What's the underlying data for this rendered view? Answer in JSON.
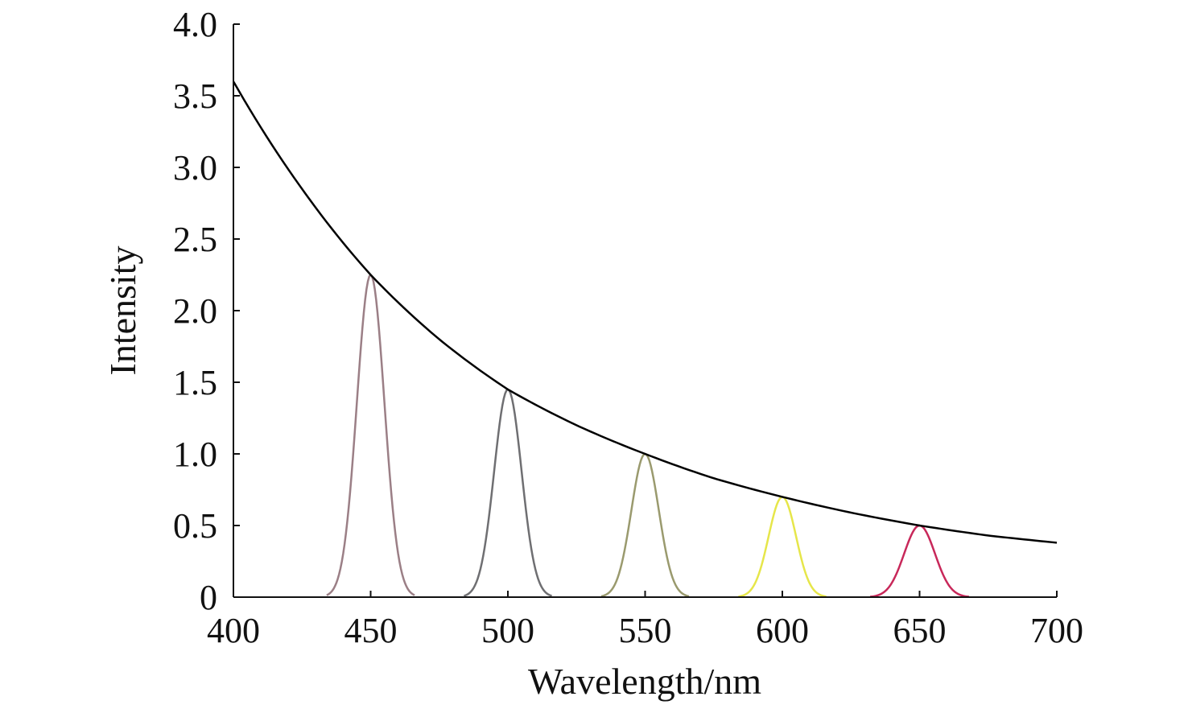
{
  "chart_data": {
    "type": "line",
    "title": "",
    "xlabel": "Wavelength/nm",
    "ylabel": "Intensity",
    "xlim": [
      400,
      700
    ],
    "ylim": [
      0,
      4.0
    ],
    "x_ticks": [
      "400",
      "450",
      "500",
      "550",
      "600",
      "650",
      "700"
    ],
    "y_ticks": [
      "0",
      "0.5",
      "1.0",
      "1.5",
      "2.0",
      "2.5",
      "3.0",
      "3.5",
      "4.0"
    ],
    "grid": false,
    "legend": "none",
    "envelope": {
      "color": "#000000",
      "points": [
        [
          400,
          3.6
        ],
        [
          425,
          2.85
        ],
        [
          450,
          2.25
        ],
        [
          475,
          1.8
        ],
        [
          500,
          1.45
        ],
        [
          525,
          1.2
        ],
        [
          550,
          1.0
        ],
        [
          575,
          0.83
        ],
        [
          600,
          0.7
        ],
        [
          625,
          0.59
        ],
        [
          650,
          0.5
        ],
        [
          675,
          0.43
        ],
        [
          700,
          0.38
        ]
      ]
    },
    "peaks": [
      {
        "center": 450,
        "peak": 2.25,
        "color": "#9b7f86",
        "x_range": [
          434,
          466
        ]
      },
      {
        "center": 500,
        "peak": 1.45,
        "color": "#6f6f72",
        "x_range": [
          484,
          516
        ]
      },
      {
        "center": 550,
        "peak": 1.0,
        "color": "#9a9a6e",
        "x_range": [
          534,
          566
        ]
      },
      {
        "center": 600,
        "peak": 0.7,
        "color": "#e6e64a",
        "x_range": [
          584,
          616
        ]
      },
      {
        "center": 650,
        "peak": 0.5,
        "color": "#c8285a",
        "x_range": [
          632,
          668
        ]
      }
    ]
  }
}
